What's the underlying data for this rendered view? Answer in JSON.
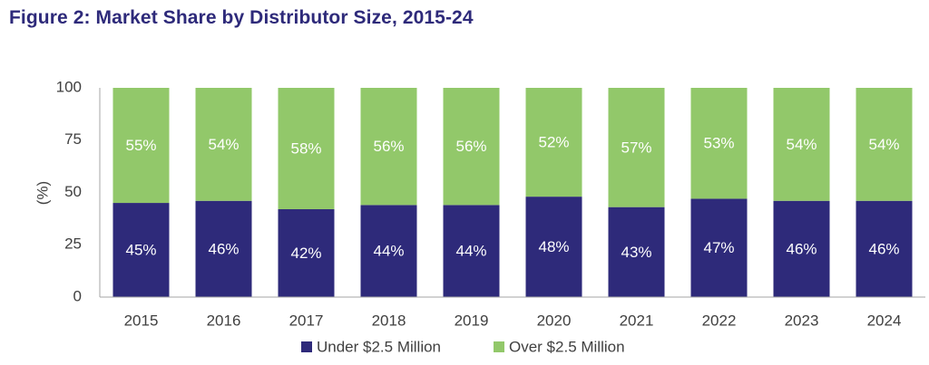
{
  "chart_data": {
    "type": "bar",
    "stacked": true,
    "title": "Figure 2: Market Share by Distributor Size, 2015-24",
    "xlabel": "",
    "ylabel": "(%)",
    "ylim": [
      0,
      100
    ],
    "yticks": [
      "0",
      "25",
      "50",
      "75",
      "100"
    ],
    "ytick_values": [
      0,
      25,
      50,
      75,
      100
    ],
    "categories": [
      "2015",
      "2016",
      "2017",
      "2018",
      "2019",
      "2020",
      "2021",
      "2022",
      "2023",
      "2024"
    ],
    "series": [
      {
        "name": "Under $2.5 Million",
        "color": "#2e2a7a",
        "values": [
          45,
          46,
          42,
          44,
          44,
          48,
          43,
          47,
          46,
          46
        ],
        "labels": [
          "45%",
          "46%",
          "42%",
          "44%",
          "44%",
          "48%",
          "43%",
          "47%",
          "46%",
          "46%"
        ]
      },
      {
        "name": "Over $2.5 Million",
        "color": "#92c86a",
        "values": [
          55,
          54,
          58,
          56,
          56,
          52,
          57,
          53,
          54,
          54
        ],
        "labels": [
          "55%",
          "54%",
          "58%",
          "56%",
          "56%",
          "52%",
          "57%",
          "53%",
          "54%",
          "54%"
        ]
      }
    ],
    "legend": "bottom",
    "grid": false
  }
}
